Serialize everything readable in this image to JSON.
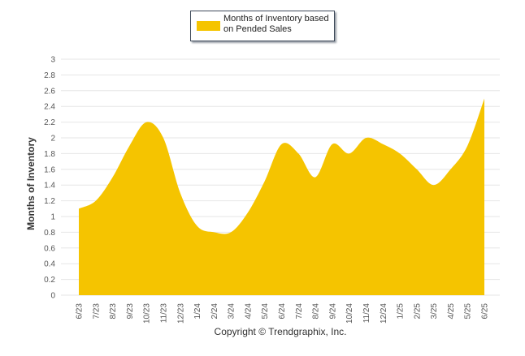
{
  "legend": {
    "label_line1": "Months of Inventory based",
    "label_line2": "on Pended Sales"
  },
  "copyright": "Copyright © Trendgraphix, Inc.",
  "colors": {
    "series_fill": "#f5c400",
    "grid": "#e6e6e6",
    "axis_text": "#555555",
    "ylabel_text": "#333333"
  },
  "chart_data": {
    "type": "area",
    "ylabel": "Months of Inventory",
    "xlabel": "",
    "ylim": [
      0,
      3
    ],
    "yticks": [
      "0",
      "0.2",
      "0.4",
      "0.6",
      "0.8",
      "1",
      "1.2",
      "1.4",
      "1.6",
      "1.8",
      "2",
      "2.2",
      "2.4",
      "2.6",
      "2.8",
      "3"
    ],
    "categories": [
      "6/23",
      "7/23",
      "8/23",
      "9/23",
      "10/23",
      "11/23",
      "12/23",
      "1/24",
      "2/24",
      "3/24",
      "4/24",
      "5/24",
      "6/24",
      "7/24",
      "8/24",
      "9/24",
      "10/24",
      "11/24",
      "12/24",
      "1/25",
      "2/25",
      "3/25",
      "4/25",
      "5/25",
      "6/25"
    ],
    "series": [
      {
        "name": "Months of Inventory based on Pended Sales",
        "values": [
          1.1,
          1.2,
          1.5,
          1.9,
          2.2,
          2.0,
          1.3,
          0.88,
          0.8,
          0.8,
          1.05,
          1.45,
          1.92,
          1.8,
          1.5,
          1.92,
          1.8,
          2.0,
          1.92,
          1.8,
          1.6,
          1.4,
          1.6,
          1.9,
          2.5
        ]
      }
    ],
    "grid": true,
    "legend_position": "top-center"
  }
}
